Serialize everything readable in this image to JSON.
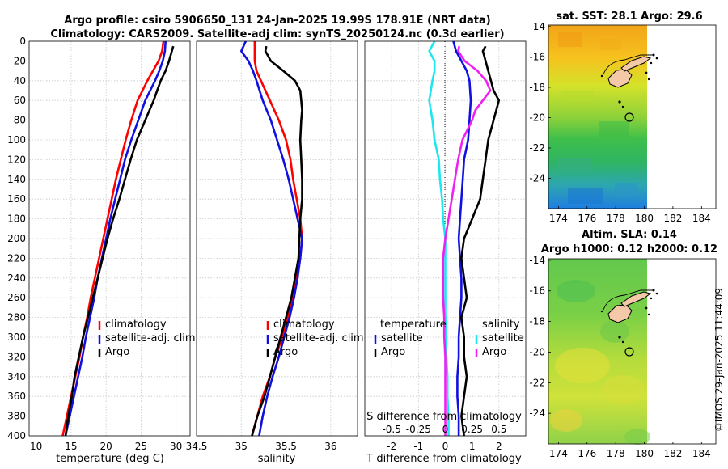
{
  "figure": {
    "title_line1": "Argo profile: csiro 5906650_131 24-Jan-2025 19.99S 178.91E (NRT data)",
    "title_line2": "Climatology: CARS2009. Satellite-adj clim: synTS_20250124.nc (0.3d earlier)",
    "side_stamp": "©IMOS 29-Jan-2025 11:44:09"
  },
  "colors": {
    "red": "#ff0000",
    "blue": "#1010e0",
    "black": "#000000",
    "cyan": "#1ee6f0",
    "magenta": "#f020f0",
    "land": "#f4c9a8"
  },
  "chart_data": [
    {
      "id": "temperature",
      "type": "line",
      "xlabel": "temperature (deg C)",
      "ylabel": "",
      "xlim": [
        9,
        32
      ],
      "ylim": [
        400,
        0
      ],
      "xticks": [
        10,
        15,
        20,
        25,
        30
      ],
      "yticks": [
        0,
        20,
        40,
        60,
        80,
        100,
        120,
        140,
        160,
        180,
        200,
        220,
        240,
        260,
        280,
        300,
        320,
        340,
        360,
        380,
        400
      ],
      "legend": [
        "climatology",
        "satellite-adj. clim",
        "Argo"
      ],
      "series": [
        {
          "name": "climatology",
          "color": "red",
          "depth": [
            0,
            10,
            20,
            30,
            40,
            60,
            80,
            100,
            120,
            140,
            160,
            180,
            200,
            220,
            240,
            260,
            280,
            300,
            320,
            340,
            360,
            380,
            400
          ],
          "values": [
            28.2,
            28.0,
            27.5,
            26.7,
            25.9,
            24.5,
            23.6,
            22.8,
            22.1,
            21.4,
            20.8,
            20.2,
            19.6,
            19.0,
            18.4,
            17.8,
            17.3,
            16.7,
            16.2,
            15.6,
            15.0,
            14.4,
            13.8
          ]
        },
        {
          "name": "satellite-adj. clim",
          "color": "blue",
          "depth": [
            0,
            10,
            20,
            30,
            40,
            60,
            80,
            100,
            120,
            140,
            160,
            180,
            200,
            220,
            240,
            260,
            280,
            300,
            320,
            340,
            360,
            380,
            400
          ],
          "values": [
            28.5,
            28.4,
            28.1,
            27.6,
            27.0,
            25.6,
            24.6,
            23.6,
            22.7,
            22.0,
            21.3,
            20.6,
            20.0,
            19.4,
            18.8,
            18.3,
            17.7,
            17.1,
            16.6,
            16.0,
            15.4,
            14.8,
            14.2
          ]
        },
        {
          "name": "Argo",
          "color": "black",
          "depth": [
            5,
            10,
            20,
            30,
            40,
            50,
            60,
            70,
            80,
            100,
            120,
            140,
            160,
            180,
            200,
            220,
            240,
            260,
            280,
            300,
            320,
            340,
            360,
            380,
            400
          ],
          "values": [
            29.6,
            29.4,
            29.0,
            28.5,
            27.8,
            27.3,
            26.8,
            26.2,
            25.6,
            24.4,
            23.5,
            22.7,
            21.9,
            21.0,
            20.2,
            19.5,
            18.8,
            18.1,
            17.4,
            16.7,
            16.1,
            15.5,
            15.1,
            14.6,
            14.2
          ]
        }
      ]
    },
    {
      "id": "salinity",
      "type": "line",
      "xlabel": "salinity",
      "ylabel": "",
      "xlim": [
        34.5,
        36.3
      ],
      "ylim": [
        400,
        0
      ],
      "xticks": [
        34.5,
        35,
        35.5,
        36
      ],
      "yticks": [
        0,
        20,
        40,
        60,
        80,
        100,
        120,
        140,
        160,
        180,
        200,
        220,
        240,
        260,
        280,
        300,
        320,
        340,
        360,
        380,
        400
      ],
      "legend": [
        "climatology",
        "satellite-adj. clim",
        "Argo"
      ],
      "series": [
        {
          "name": "climatology",
          "color": "red",
          "depth": [
            0,
            10,
            20,
            30,
            40,
            60,
            80,
            100,
            120,
            140,
            160,
            180,
            200,
            220,
            240,
            260,
            280,
            300,
            320,
            340,
            360,
            380,
            400
          ],
          "values": [
            35.15,
            35.15,
            35.15,
            35.17,
            35.22,
            35.32,
            35.42,
            35.5,
            35.55,
            35.58,
            35.62,
            35.66,
            35.68,
            35.66,
            35.62,
            35.57,
            35.52,
            35.46,
            35.38,
            35.32,
            35.24,
            35.18,
            35.12
          ]
        },
        {
          "name": "satellite-adj. clim",
          "color": "blue",
          "depth": [
            0,
            10,
            20,
            30,
            40,
            60,
            80,
            100,
            120,
            140,
            160,
            180,
            200,
            220,
            240,
            260,
            280,
            300,
            320,
            340,
            360,
            380,
            400
          ],
          "values": [
            35.05,
            35.0,
            35.08,
            35.13,
            35.17,
            35.24,
            35.33,
            35.4,
            35.47,
            35.53,
            35.58,
            35.63,
            35.68,
            35.66,
            35.63,
            35.59,
            35.54,
            35.48,
            35.42,
            35.35,
            35.29,
            35.24,
            35.2
          ]
        },
        {
          "name": "Argo",
          "color": "black",
          "depth": [
            5,
            10,
            20,
            30,
            40,
            50,
            60,
            70,
            80,
            100,
            120,
            140,
            160,
            180,
            200,
            220,
            240,
            260,
            280,
            300,
            320,
            340,
            360,
            380,
            400
          ],
          "values": [
            35.28,
            35.27,
            35.33,
            35.47,
            35.6,
            35.66,
            35.67,
            35.68,
            35.67,
            35.66,
            35.67,
            35.68,
            35.68,
            35.66,
            35.65,
            35.64,
            35.6,
            35.56,
            35.5,
            35.44,
            35.38,
            35.32,
            35.26,
            35.18,
            35.12
          ]
        }
      ]
    },
    {
      "id": "difference",
      "type": "line",
      "xlabel": "T difference from climatology",
      "xlabel2": "S difference from climatology",
      "xlim": [
        -3,
        3
      ],
      "ylim": [
        400,
        0
      ],
      "xticks": [
        -2,
        -1,
        0,
        1,
        2
      ],
      "xticks2_labels": [
        "-0.5",
        "-0.25",
        "0",
        "0.25",
        "0.5"
      ],
      "yticks": [
        0,
        20,
        40,
        60,
        80,
        100,
        120,
        140,
        160,
        180,
        200,
        220,
        240,
        260,
        280,
        300,
        320,
        340,
        360,
        380,
        400
      ],
      "legend_temperature_title": "temperature",
      "legend_salinity_title": "salinity",
      "legend_temperature": [
        "satellite",
        "Argo"
      ],
      "legend_salinity": [
        "satellite",
        "Argo"
      ],
      "series": [
        {
          "name": "T satellite",
          "color": "blue",
          "depth": [
            0,
            10,
            20,
            30,
            40,
            60,
            80,
            100,
            120,
            140,
            160,
            180,
            200,
            220,
            240,
            260,
            280,
            300,
            320,
            340,
            360,
            380,
            400
          ],
          "values": [
            0.3,
            0.4,
            0.6,
            0.8,
            0.9,
            0.95,
            0.9,
            0.85,
            0.7,
            0.65,
            0.6,
            0.55,
            0.5,
            0.55,
            0.6,
            0.6,
            0.55,
            0.5,
            0.5,
            0.45,
            0.45,
            0.5,
            0.5
          ]
        },
        {
          "name": "T Argo",
          "color": "black",
          "depth": [
            5,
            10,
            20,
            30,
            40,
            50,
            60,
            70,
            80,
            100,
            120,
            140,
            160,
            180,
            200,
            220,
            240,
            260,
            280,
            300,
            320,
            340,
            360,
            380,
            400
          ],
          "values": [
            1.5,
            1.4,
            1.5,
            1.6,
            1.7,
            1.8,
            2.0,
            1.9,
            1.8,
            1.6,
            1.5,
            1.4,
            1.3,
            1.0,
            0.7,
            0.6,
            0.7,
            0.8,
            0.6,
            0.7,
            0.7,
            0.8,
            0.7,
            0.6,
            0.7
          ]
        },
        {
          "name": "S satellite",
          "color": "cyan",
          "depth": [
            0,
            10,
            20,
            30,
            40,
            60,
            80,
            100,
            120,
            140,
            160,
            180,
            200,
            220,
            240,
            260,
            280,
            300,
            320,
            340,
            360,
            380,
            400
          ],
          "values": [
            -0.1,
            -0.15,
            -0.1,
            -0.1,
            -0.12,
            -0.15,
            -0.12,
            -0.1,
            -0.06,
            -0.05,
            -0.03,
            -0.02,
            0,
            0,
            0,
            0,
            0,
            0.01,
            0.01,
            0.02,
            0.02,
            0.03,
            0.03
          ]
        },
        {
          "name": "S Argo",
          "color": "magenta",
          "depth": [
            5,
            10,
            20,
            30,
            40,
            50,
            60,
            70,
            80,
            100,
            120,
            140,
            160,
            180,
            200,
            220,
            240,
            260,
            280,
            300,
            320,
            340,
            360,
            380,
            400
          ],
          "values": [
            0.13,
            0.12,
            0.18,
            0.3,
            0.38,
            0.42,
            0.35,
            0.28,
            0.25,
            0.16,
            0.12,
            0.09,
            0.06,
            0.03,
            0,
            -0.02,
            -0.02,
            -0.02,
            -0.01,
            -0.01,
            0,
            0,
            0,
            0,
            0
          ]
        }
      ]
    }
  ],
  "maps": [
    {
      "id": "sst",
      "title_line1": "sat. SST: 28.1 Argo: 29.6",
      "title_line2": "",
      "xticks": [
        174,
        176,
        178,
        180,
        182,
        184
      ],
      "yticks": [
        -14,
        -16,
        -18,
        -20,
        -22,
        -24
      ]
    },
    {
      "id": "sla",
      "title_line1": "Altim. SLA: 0.14",
      "title_line2": "Argo h1000: 0.12 h2000: 0.12",
      "xticks": [
        174,
        176,
        178,
        180,
        182,
        184
      ],
      "yticks": [
        -14,
        -16,
        -18,
        -20,
        -22,
        -24
      ]
    }
  ]
}
